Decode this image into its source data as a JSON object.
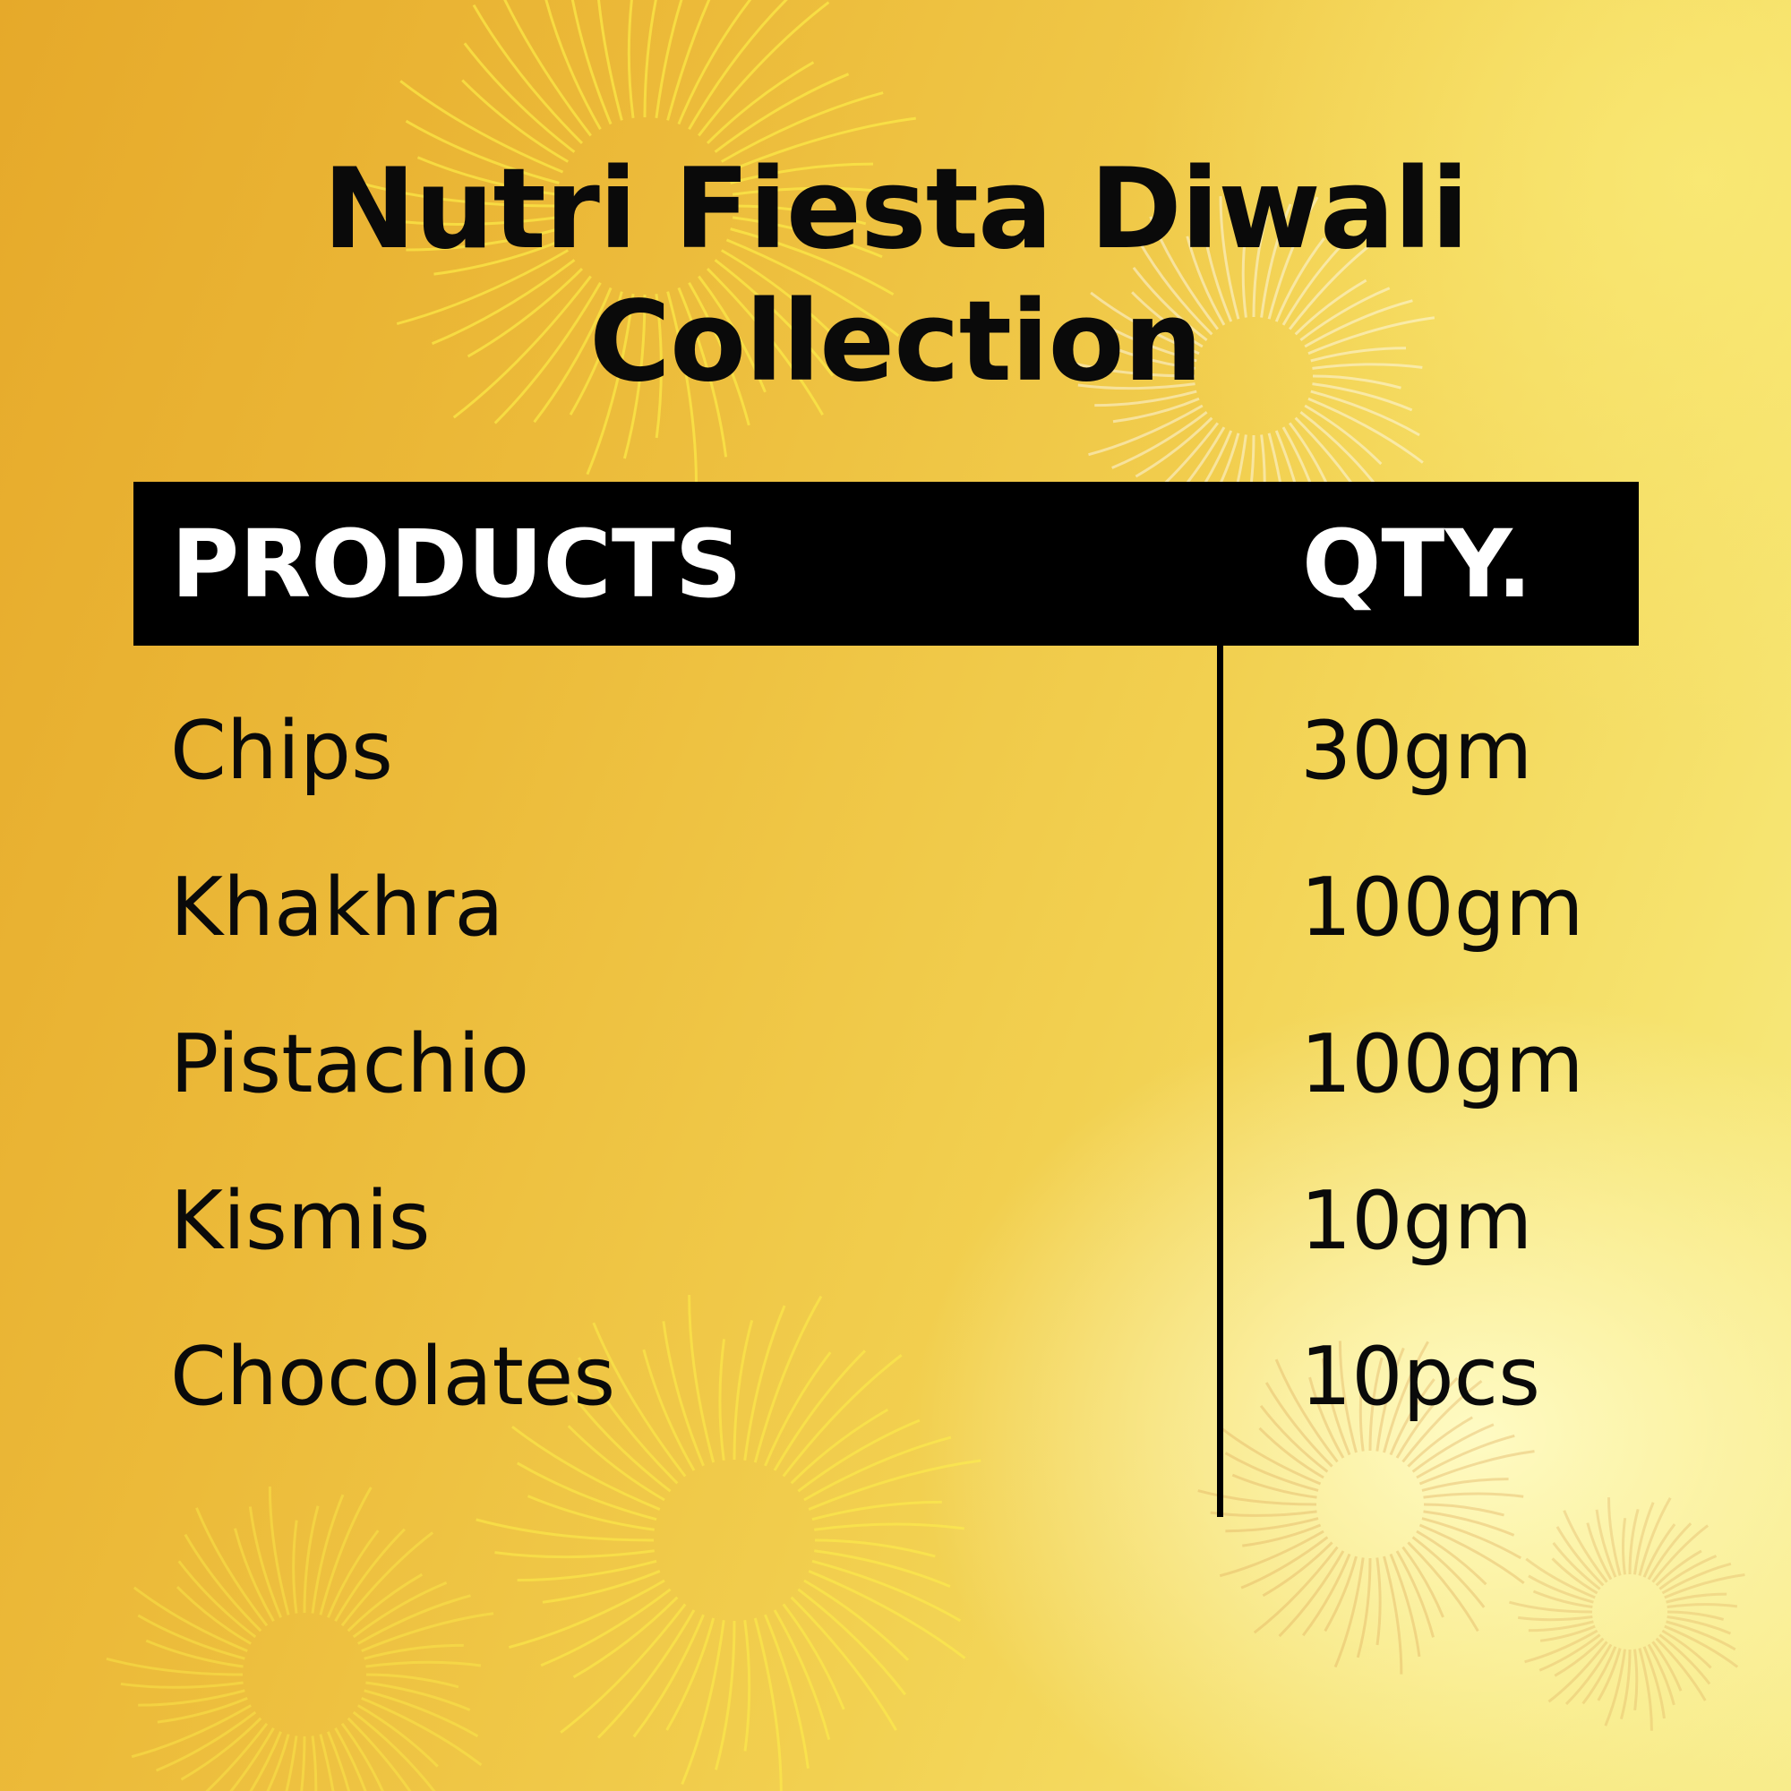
{
  "title": {
    "line1": "Nutri Fiesta Diwali",
    "line2": "Collection"
  },
  "table": {
    "headers": {
      "products": "PRODUCTS",
      "qty": "QTY."
    },
    "rows": [
      {
        "product": "Chips",
        "qty": "30gm"
      },
      {
        "product": "Khakhra",
        "qty": "100gm"
      },
      {
        "product": "Pistachio",
        "qty": "100gm"
      },
      {
        "product": "Kismis",
        "qty": "10gm"
      },
      {
        "product": "Chocolates",
        "qty": "10pcs"
      }
    ]
  },
  "colors": {
    "background_left": "#e6a92a",
    "background_right": "#f8ec8a",
    "header_bg": "#000000",
    "text": "#0a0a0a",
    "firework_yellow": "#fff34a",
    "firework_white": "#ffffff"
  },
  "decorations": [
    "fireworks-burst-icon"
  ]
}
